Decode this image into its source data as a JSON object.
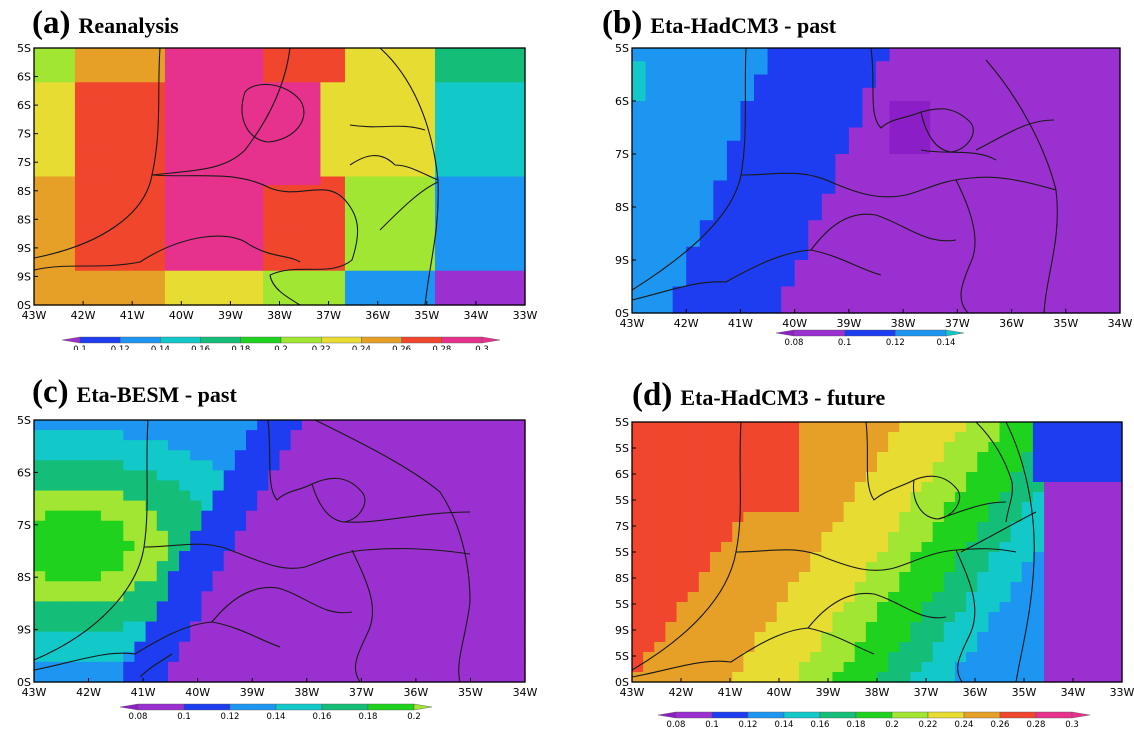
{
  "panels": [
    {
      "id": "a",
      "label": "(a)",
      "title": "Reanalysis",
      "lon_ticks": [
        "43W",
        "42W",
        "41W",
        "40W",
        "39W",
        "38W",
        "37W",
        "36W",
        "35W",
        "34W",
        "33W"
      ],
      "lat_ticks": [
        "5S",
        "6S",
        "6S",
        "7S",
        "7S",
        "8S",
        "8S",
        "9S",
        "9S",
        "0S"
      ],
      "colorbar_labels": [
        "0.1",
        "0.12",
        "0.14",
        "0.16",
        "0.18",
        "0.2",
        "0.22",
        "0.24",
        "0.26",
        "0.28",
        "0.3"
      ]
    },
    {
      "id": "b",
      "label": "(b)",
      "title": "Eta-HadCM3 - past",
      "lon_ticks": [
        "43W",
        "42W",
        "41W",
        "40W",
        "39W",
        "38W",
        "37W",
        "36W",
        "35W",
        "34W"
      ],
      "lat_ticks": [
        "5S",
        "6S",
        "7S",
        "8S",
        "9S",
        "0S"
      ],
      "colorbar_labels": [
        "0.08",
        "0.1",
        "0.12",
        "0.14"
      ]
    },
    {
      "id": "c",
      "label": "(c)",
      "title": "Eta-BESM - past",
      "lon_ticks": [
        "43W",
        "42W",
        "41W",
        "40W",
        "39W",
        "38W",
        "37W",
        "36W",
        "35W",
        "34W"
      ],
      "lat_ticks": [
        "5S",
        "6S",
        "7S",
        "8S",
        "9S",
        "0S"
      ],
      "colorbar_labels": [
        "0.08",
        "0.1",
        "0.12",
        "0.14",
        "0.16",
        "0.18",
        "0.2"
      ]
    },
    {
      "id": "d",
      "label": "(d)",
      "title": "Eta-HadCM3 - future",
      "lon_ticks": [
        "43W",
        "42W",
        "41W",
        "40W",
        "39W",
        "38W",
        "37W",
        "36W",
        "35W",
        "34W",
        "33W"
      ],
      "lat_ticks": [
        "5S",
        "5S",
        "6S",
        "5S",
        "7S",
        "5S",
        "8S",
        "5S",
        "9S",
        "5S",
        "0S"
      ],
      "colorbar_labels": [
        "0.08",
        "0.1",
        "0.12",
        "0.14",
        "0.16",
        "0.18",
        "0.2",
        "0.22",
        "0.24",
        "0.26",
        "0.28",
        "0.3"
      ]
    }
  ],
  "colors": {
    "c008": "#8c1ec8",
    "c010": "#9b30d0",
    "c012": "#1e3cf0",
    "c014": "#1c96f0",
    "c016": "#12c8c8",
    "c018": "#14be78",
    "c020": "#1ed21e",
    "c022": "#a0e632",
    "c024": "#e6dc32",
    "c026": "#e6a028",
    "c028": "#f0462d",
    "c030": "#e6328c"
  }
}
